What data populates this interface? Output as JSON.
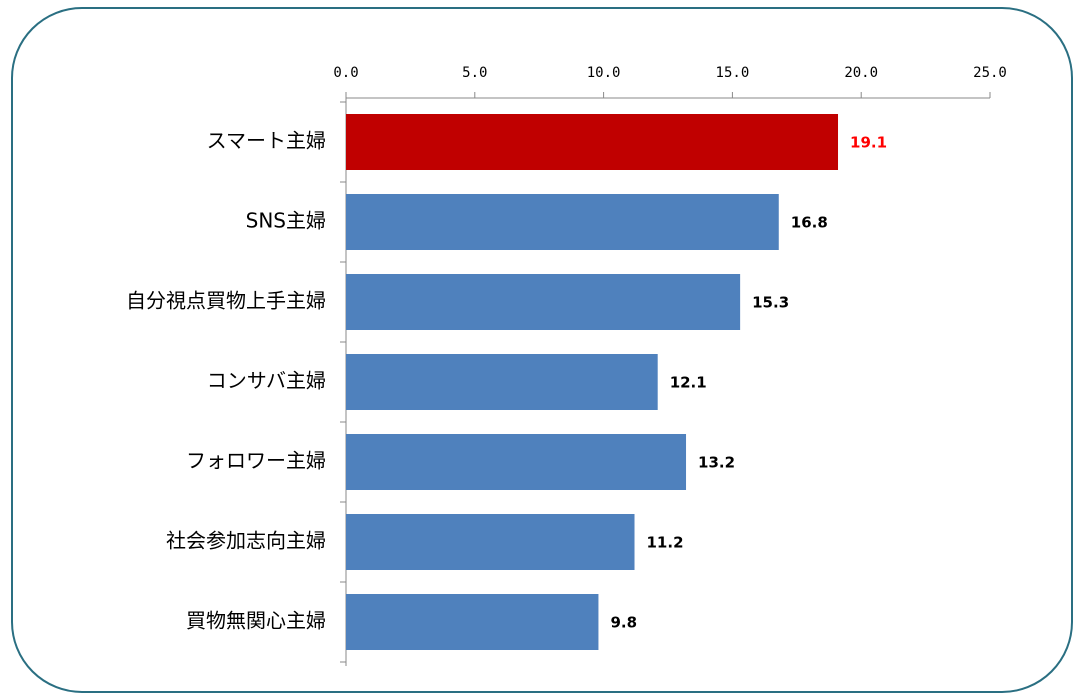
{
  "chart_data": {
    "type": "hbar",
    "categories": [
      "スマート主婦",
      "SNS主婦",
      "自分視点買物上手主婦",
      "コンサバ主婦",
      "フォロワー主婦",
      "社会参加志向主婦",
      "買物無関心主婦"
    ],
    "values": [
      19.1,
      16.8,
      15.3,
      12.1,
      13.2,
      11.2,
      9.8
    ],
    "colors": [
      "#c00000",
      "#4f81bd",
      "#4f81bd",
      "#4f81bd",
      "#4f81bd",
      "#4f81bd",
      "#4f81bd"
    ],
    "value_label_colors": [
      "#ff0000",
      "#000000",
      "#000000",
      "#000000",
      "#000000",
      "#000000",
      "#000000"
    ],
    "xlim": [
      0,
      25
    ],
    "xticks": [
      {
        "value": 0,
        "label": "0.0"
      },
      {
        "value": 5,
        "label": "5.0"
      },
      {
        "value": 10,
        "label": "10.0"
      },
      {
        "value": 15,
        "label": "15.0"
      },
      {
        "value": 20,
        "label": "20.0"
      },
      {
        "value": 25,
        "label": "25.0"
      }
    ],
    "grid": false
  }
}
